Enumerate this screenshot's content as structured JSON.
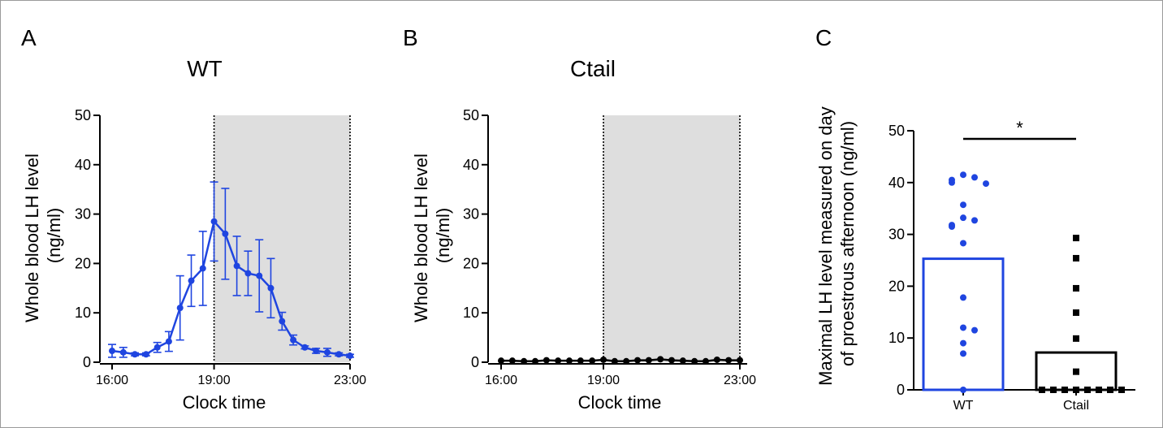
{
  "chart_data": [
    {
      "panel": "A",
      "type": "line",
      "title": "WT",
      "xlabel": "Clock time",
      "ylabel": "Whole blood LH level\n(ng/ml)",
      "ylim": [
        0,
        50
      ],
      "yticks": [
        0,
        10,
        20,
        30,
        40,
        50
      ],
      "xlim": [
        16,
        23
      ],
      "xticks": [
        16,
        19,
        23
      ],
      "xtick_labels": [
        "16:00",
        "19:00",
        "23:00"
      ],
      "shaded_region": [
        19,
        23
      ],
      "colors": {
        "series": "#1f45e0",
        "shade": "#dedede"
      },
      "series": [
        {
          "x": [
            16,
            16.33,
            16.67,
            17,
            17.33,
            17.67,
            18,
            18.33,
            18.67,
            19,
            19.33,
            19.67,
            20,
            20.33,
            20.67,
            21,
            21.33,
            21.67,
            22,
            22.33,
            22.67,
            23
          ],
          "y": [
            2.3,
            2.0,
            1.6,
            1.6,
            3.0,
            4.2,
            11.0,
            16.5,
            19.0,
            28.5,
            26.0,
            19.5,
            18.0,
            17.5,
            15.0,
            8.3,
            4.5,
            3.0,
            2.3,
            2.0,
            1.6,
            1.3
          ],
          "error": [
            1.3,
            1.0,
            0.3,
            0.3,
            1.0,
            2.0,
            6.5,
            5.2,
            7.5,
            8.0,
            9.2,
            6.0,
            4.5,
            7.3,
            6.0,
            1.8,
            1.0,
            0.3,
            0.5,
            0.8,
            0.3,
            0.3
          ]
        }
      ]
    },
    {
      "panel": "B",
      "type": "line",
      "title": "Ctail",
      "xlabel": "Clock time",
      "ylabel": "Whole blood LH level\n(ng/ml)",
      "ylim": [
        0,
        50
      ],
      "yticks": [
        0,
        10,
        20,
        30,
        40,
        50
      ],
      "xlim": [
        16,
        23
      ],
      "xticks": [
        16,
        19,
        23
      ],
      "xtick_labels": [
        "16:00",
        "19:00",
        "23:00"
      ],
      "shaded_region": [
        19,
        23
      ],
      "colors": {
        "series": "#000000",
        "shade": "#dedede"
      },
      "series": [
        {
          "x": [
            16,
            16.33,
            16.67,
            17,
            17.33,
            17.67,
            18,
            18.33,
            18.67,
            19,
            19.33,
            19.67,
            20,
            20.33,
            20.67,
            21,
            21.33,
            21.67,
            22,
            22.33,
            22.67,
            23
          ],
          "y": [
            0.3,
            0.3,
            0.2,
            0.2,
            0.4,
            0.3,
            0.3,
            0.3,
            0.3,
            0.5,
            0.2,
            0.2,
            0.4,
            0.4,
            0.6,
            0.4,
            0.3,
            0.2,
            0.2,
            0.5,
            0.4,
            0.4
          ]
        }
      ]
    },
    {
      "panel": "C",
      "type": "bar",
      "title": "",
      "xlabel": "",
      "ylabel": "Maximal LH level measured on day\nof proestrous afternoon (ng/ml)",
      "ylim": [
        0,
        50
      ],
      "yticks": [
        0,
        10,
        20,
        30,
        40,
        50
      ],
      "categories": [
        "WT",
        "Ctail"
      ],
      "values": [
        25.3,
        7.2
      ],
      "colors": {
        "WT": "#1f45e0",
        "Ctail": "#000000"
      },
      "points": [
        {
          "category": "WT",
          "values": [
            41.5,
            41.0,
            40.5,
            40.0,
            39.8,
            35.7,
            33.2,
            32.7,
            31.8,
            31.5,
            28.3,
            17.8,
            12.0,
            11.5,
            9.0,
            7.0,
            0.0
          ]
        },
        {
          "category": "Ctail",
          "values": [
            29.3,
            25.4,
            19.6,
            14.9,
            9.9,
            3.5,
            0.0,
            0.0,
            0.0,
            0.0,
            0.0,
            0.0,
            0.0,
            0.0
          ]
        }
      ],
      "significance": {
        "label": "*",
        "y": 50
      }
    }
  ]
}
